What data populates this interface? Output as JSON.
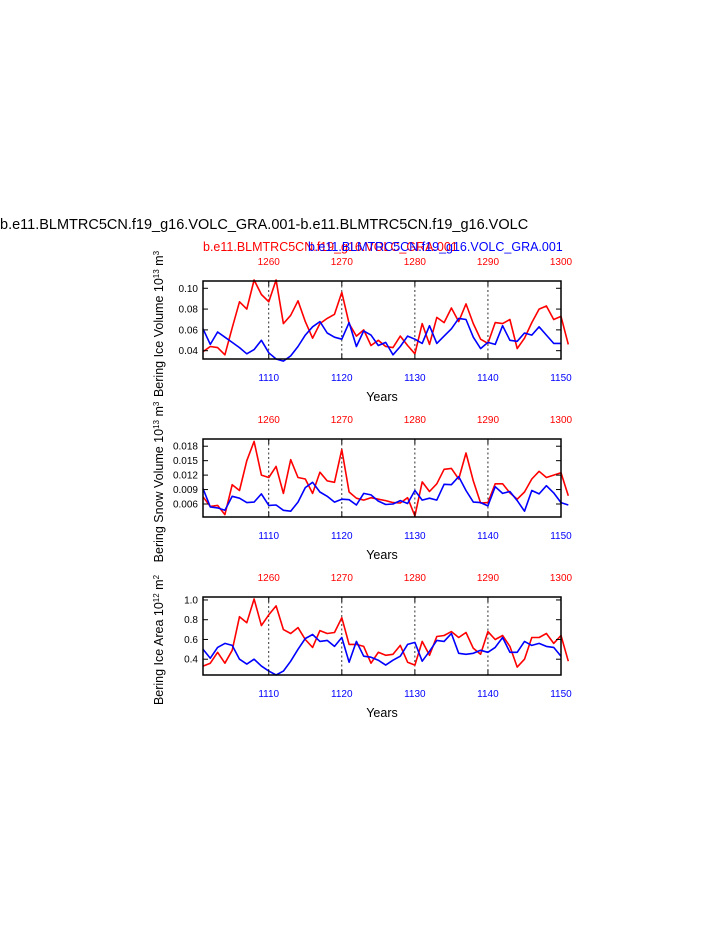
{
  "header": {
    "title": "b.e11.BLMTRC5CN.f19_g16.VOLC_GRA.001-b.e11.BLMTRC5CN.f19_g16.VOLC",
    "subtitle_red": "b.e11.BLMTRC5CN.f19_g16.VOLC_GRA.001",
    "subtitle_blue": "b.e11.BLMTRC5CN.f19_g16.VOLC_GRA.001"
  },
  "colors": {
    "red": "#ff0000",
    "blue": "#0000ff",
    "axis": "#000000",
    "grid": "#000000"
  },
  "chart_data": [
    {
      "type": "line",
      "ylabel": "Bering Ice Volume 10^13 m^3",
      "xlabel": "Years",
      "bottom_axis": {
        "range": [
          1101,
          1150
        ],
        "ticks": [
          1110,
          1120,
          1130,
          1140,
          1150
        ]
      },
      "top_axis": {
        "range": [
          1251,
          1300
        ],
        "ticks": [
          1260,
          1270,
          1280,
          1290,
          1300
        ]
      },
      "ylim": [
        0.032,
        0.107
      ],
      "yticks": [
        "0.04",
        "0.06",
        "0.08",
        "0.10"
      ],
      "yticks_values": [
        0.04,
        0.06,
        0.08,
        0.1
      ],
      "grid_x": [
        1110,
        1120,
        1130,
        1140
      ],
      "series": [
        {
          "color": "red",
          "x_axis": "top",
          "values": [
            0.039,
            0.044,
            0.043,
            0.036,
            0.062,
            0.087,
            0.08,
            0.108,
            0.094,
            0.087,
            0.108,
            0.066,
            0.074,
            0.088,
            0.068,
            0.052,
            0.066,
            0.071,
            0.075,
            0.096,
            0.066,
            0.054,
            0.06,
            0.045,
            0.05,
            0.044,
            0.043,
            0.054,
            0.045,
            0.037,
            0.066,
            0.046,
            0.072,
            0.067,
            0.081,
            0.068,
            0.085,
            0.066,
            0.051,
            0.047,
            0.067,
            0.066,
            0.07,
            0.042,
            0.052,
            0.067,
            0.08,
            0.083,
            0.07,
            0.073,
            0.046
          ]
        },
        {
          "color": "blue",
          "x_axis": "bottom",
          "values": [
            0.061,
            0.046,
            0.058,
            0.053,
            0.048,
            0.043,
            0.037,
            0.041,
            0.05,
            0.038,
            0.032,
            0.03,
            0.035,
            0.044,
            0.055,
            0.063,
            0.068,
            0.057,
            0.053,
            0.051,
            0.067,
            0.044,
            0.059,
            0.055,
            0.045,
            0.048,
            0.036,
            0.044,
            0.054,
            0.051,
            0.047,
            0.064,
            0.047,
            0.054,
            0.061,
            0.071,
            0.07,
            0.053,
            0.042,
            0.048,
            0.046,
            0.064,
            0.05,
            0.049,
            0.057,
            0.055,
            0.063,
            0.055,
            0.047,
            0.047
          ]
        }
      ]
    },
    {
      "type": "line",
      "ylabel": "Bering Snow Volume 10^13 m^3",
      "xlabel": "Years",
      "bottom_axis": {
        "range": [
          1101,
          1150
        ],
        "ticks": [
          1110,
          1120,
          1130,
          1140,
          1150
        ]
      },
      "top_axis": {
        "range": [
          1251,
          1300
        ],
        "ticks": [
          1260,
          1270,
          1280,
          1290,
          1300
        ]
      },
      "ylim": [
        0.0033,
        0.0195
      ],
      "yticks": [
        "0.006",
        "0.009",
        "0.012",
        "0.015",
        "0.018"
      ],
      "yticks_values": [
        0.006,
        0.009,
        0.012,
        0.015,
        0.018
      ],
      "grid_x": [
        1110,
        1120,
        1130,
        1140
      ],
      "series": [
        {
          "color": "red",
          "x_axis": "top",
          "values": [
            0.0075,
            0.0055,
            0.0057,
            0.0038,
            0.01,
            0.0088,
            0.015,
            0.019,
            0.012,
            0.0115,
            0.0138,
            0.0082,
            0.0152,
            0.0115,
            0.0112,
            0.0082,
            0.0126,
            0.0108,
            0.0105,
            0.0173,
            0.0085,
            0.0072,
            0.0068,
            0.0073,
            0.007,
            0.0067,
            0.0063,
            0.0062,
            0.0073,
            0.0035,
            0.0106,
            0.0086,
            0.0102,
            0.0132,
            0.0134,
            0.0112,
            0.0166,
            0.0108,
            0.0062,
            0.0063,
            0.0102,
            0.0102,
            0.0083,
            0.007,
            0.0085,
            0.0112,
            0.0128,
            0.0115,
            0.012,
            0.0125,
            0.0077
          ]
        },
        {
          "color": "blue",
          "x_axis": "bottom",
          "values": [
            0.0092,
            0.0054,
            0.0052,
            0.0047,
            0.0076,
            0.0072,
            0.0063,
            0.0064,
            0.0081,
            0.0057,
            0.0058,
            0.0047,
            0.0045,
            0.0064,
            0.0094,
            0.0105,
            0.0085,
            0.0076,
            0.0064,
            0.007,
            0.0069,
            0.0058,
            0.0082,
            0.0079,
            0.0066,
            0.0059,
            0.006,
            0.0067,
            0.0061,
            0.0088,
            0.0068,
            0.0072,
            0.0068,
            0.0101,
            0.01,
            0.0117,
            0.0088,
            0.0064,
            0.0063,
            0.0056,
            0.0096,
            0.0082,
            0.0086,
            0.0067,
            0.0045,
            0.0088,
            0.0081,
            0.0098,
            0.0083,
            0.0063,
            0.0058
          ]
        }
      ]
    },
    {
      "type": "line",
      "ylabel": "Bering Ice Area 10^12 m^2",
      "xlabel": "Years",
      "bottom_axis": {
        "range": [
          1101,
          1150
        ],
        "ticks": [
          1110,
          1120,
          1130,
          1140,
          1150
        ]
      },
      "top_axis": {
        "range": [
          1251,
          1300
        ],
        "ticks": [
          1260,
          1270,
          1280,
          1290,
          1300
        ]
      },
      "ylim": [
        0.24,
        1.03
      ],
      "yticks": [
        "0.4",
        "0.6",
        "0.8",
        "1.0"
      ],
      "yticks_values": [
        0.4,
        0.6,
        0.8,
        1.0
      ],
      "grid_x": [
        1110,
        1120,
        1130,
        1140
      ],
      "series": [
        {
          "color": "red",
          "x_axis": "top",
          "values": [
            0.33,
            0.36,
            0.47,
            0.36,
            0.49,
            0.83,
            0.77,
            1.01,
            0.74,
            0.85,
            0.94,
            0.7,
            0.66,
            0.72,
            0.6,
            0.52,
            0.69,
            0.66,
            0.67,
            0.82,
            0.55,
            0.55,
            0.53,
            0.36,
            0.47,
            0.44,
            0.45,
            0.54,
            0.37,
            0.34,
            0.58,
            0.44,
            0.63,
            0.64,
            0.68,
            0.62,
            0.67,
            0.51,
            0.45,
            0.68,
            0.6,
            0.64,
            0.53,
            0.32,
            0.4,
            0.62,
            0.62,
            0.66,
            0.56,
            0.64,
            0.38
          ]
        },
        {
          "color": "blue",
          "x_axis": "bottom",
          "values": [
            0.5,
            0.41,
            0.52,
            0.56,
            0.54,
            0.4,
            0.35,
            0.4,
            0.33,
            0.28,
            0.24,
            0.28,
            0.38,
            0.5,
            0.61,
            0.65,
            0.58,
            0.59,
            0.53,
            0.62,
            0.37,
            0.58,
            0.43,
            0.42,
            0.39,
            0.34,
            0.39,
            0.43,
            0.55,
            0.57,
            0.38,
            0.48,
            0.59,
            0.58,
            0.66,
            0.46,
            0.45,
            0.46,
            0.49,
            0.47,
            0.52,
            0.62,
            0.47,
            0.47,
            0.58,
            0.54,
            0.56,
            0.53,
            0.52,
            0.43
          ]
        }
      ]
    }
  ]
}
